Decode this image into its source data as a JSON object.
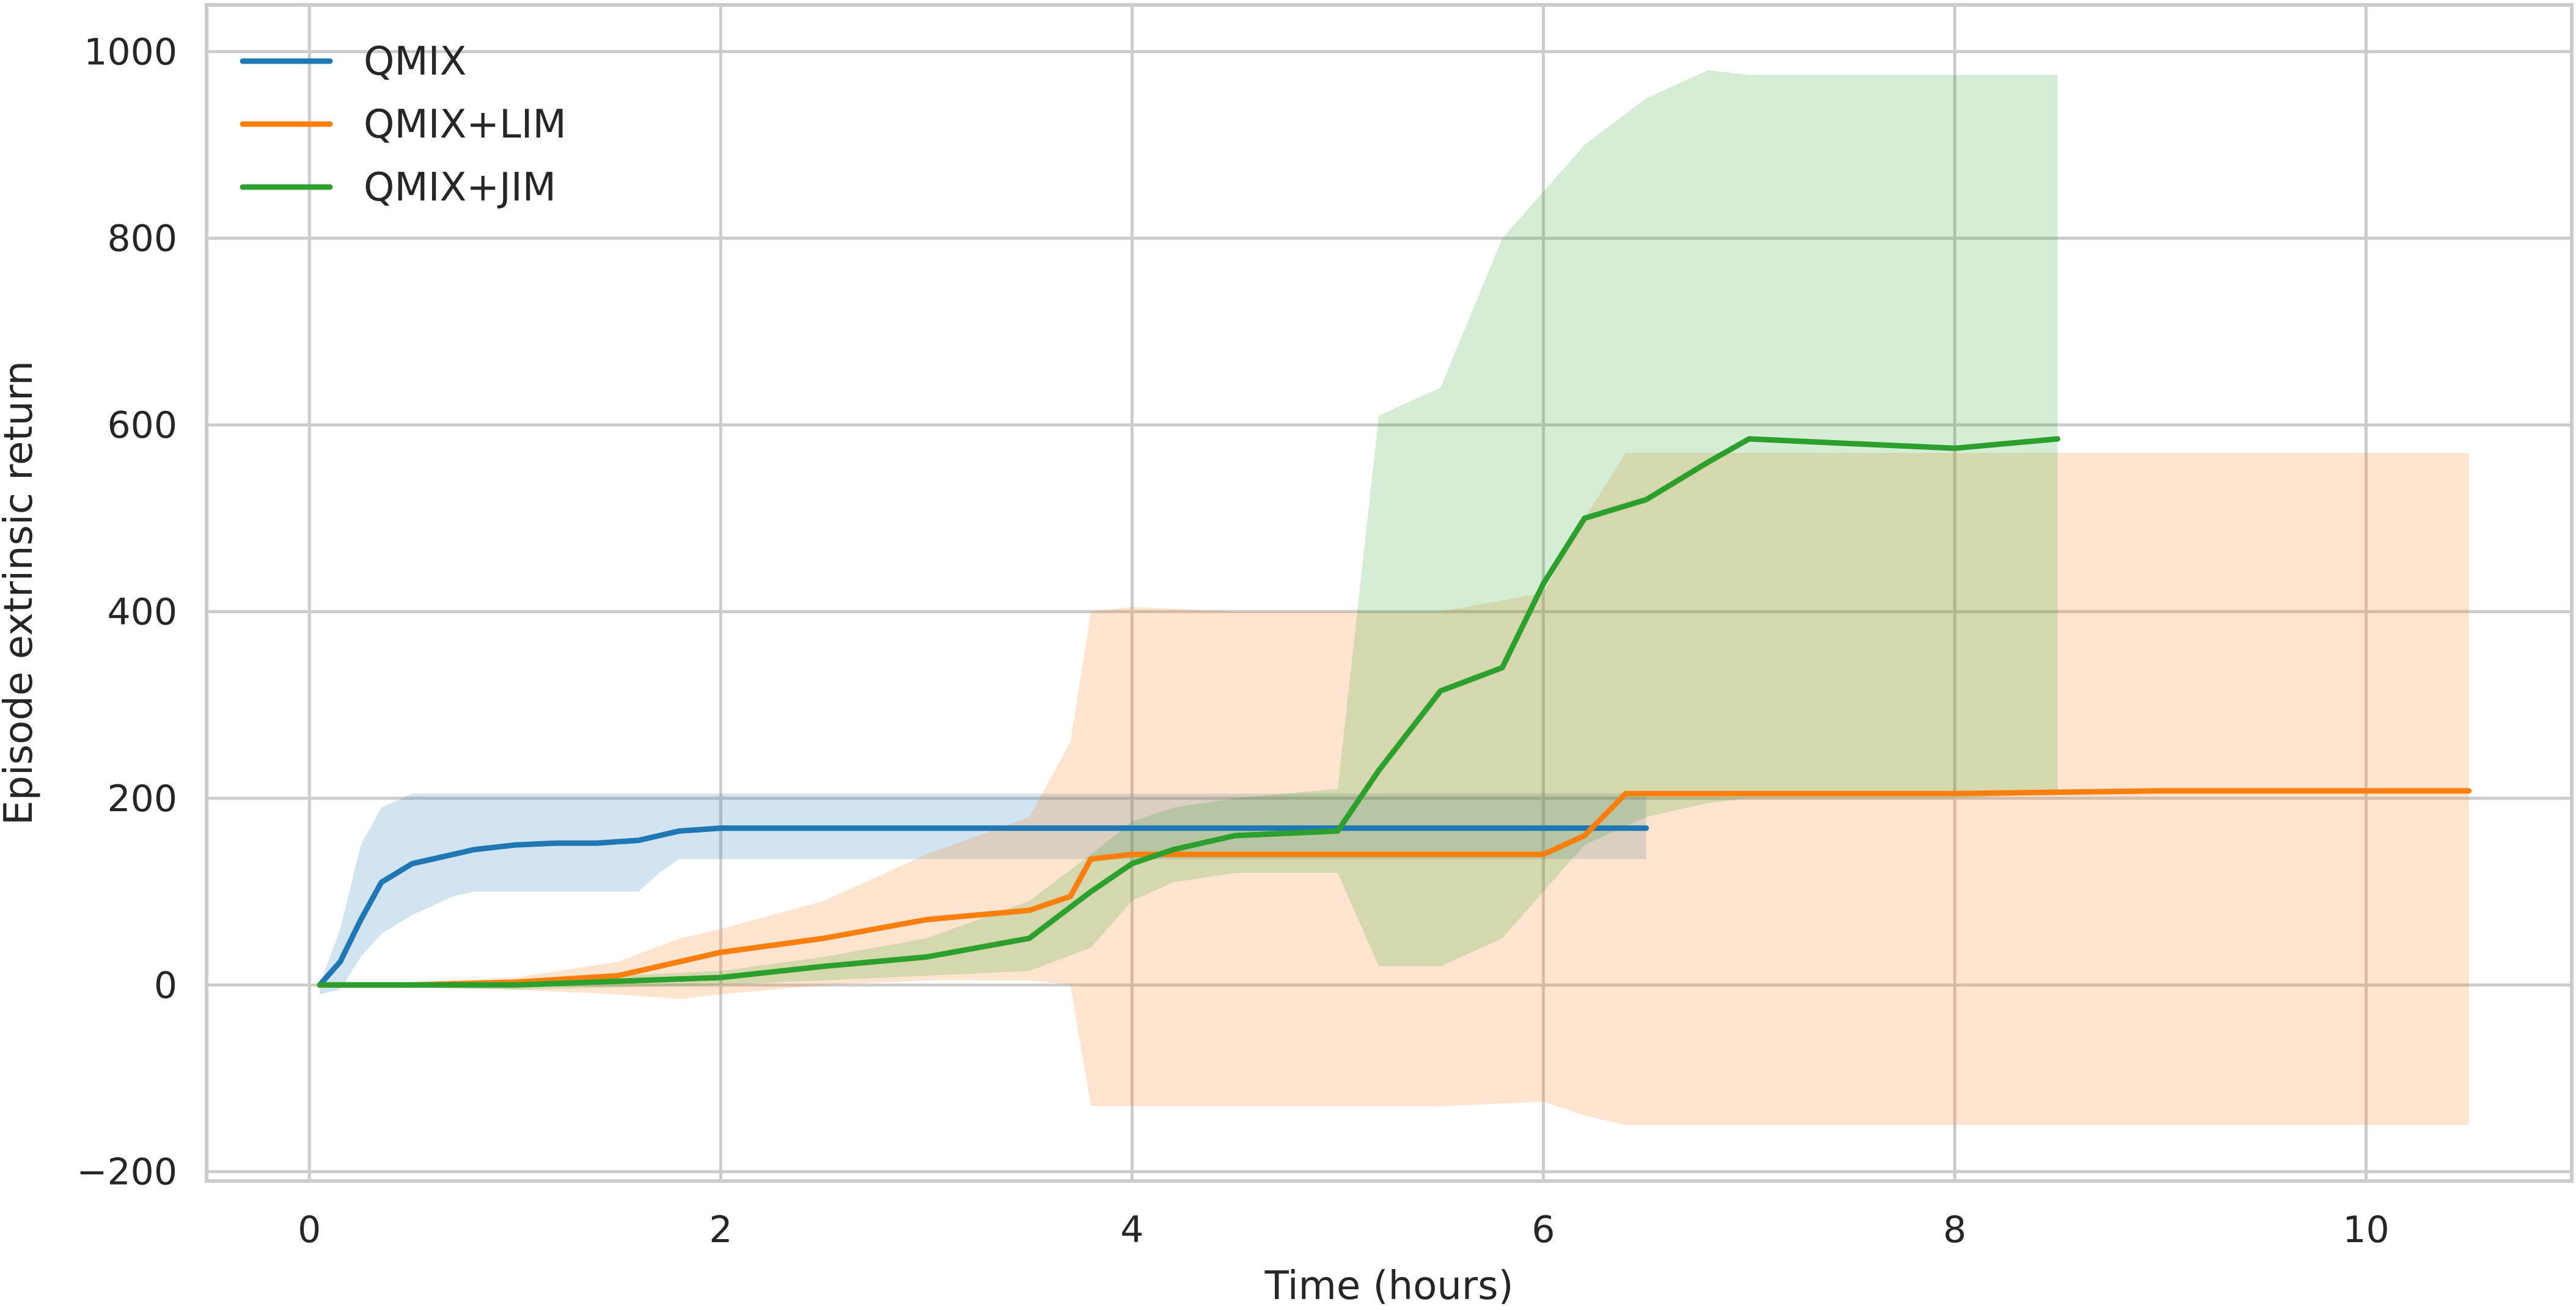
{
  "chart_data": {
    "type": "line",
    "xlabel": "Time (hours)",
    "ylabel": "Episode extrinsic return",
    "xlim": [
      -0.5,
      11.0
    ],
    "ylim": [
      -210,
      1050
    ],
    "xticks": [
      0,
      2,
      4,
      6,
      8,
      10
    ],
    "xtick_labels": [
      "0",
      "2",
      "4",
      "6",
      "8",
      "10"
    ],
    "yticks": [
      -200,
      0,
      200,
      400,
      600,
      800,
      1000
    ],
    "ytick_labels": [
      "−200",
      "0",
      "200",
      "400",
      "600",
      "800",
      "1000"
    ],
    "grid": true,
    "legend_position": "top-left",
    "series": [
      {
        "name": "QMIX",
        "color": "#1f77b4",
        "x": [
          0.05,
          0.15,
          0.25,
          0.35,
          0.5,
          0.6,
          0.7,
          0.8,
          1.0,
          1.2,
          1.4,
          1.6,
          1.7,
          1.8,
          2.0,
          2.5,
          3.0,
          3.5,
          4.0,
          4.5,
          5.0,
          5.5,
          6.0,
          6.5
        ],
        "y": [
          0,
          25,
          70,
          110,
          130,
          135,
          140,
          145,
          150,
          152,
          152,
          155,
          160,
          165,
          168,
          168,
          168,
          168,
          168,
          168,
          168,
          168,
          168,
          168
        ],
        "upper": [
          0,
          60,
          150,
          190,
          205,
          205,
          205,
          205,
          205,
          205,
          205,
          205,
          205,
          205,
          205,
          205,
          205,
          205,
          205,
          205,
          205,
          205,
          205,
          205
        ],
        "lower": [
          -10,
          -5,
          30,
          55,
          75,
          85,
          95,
          100,
          100,
          100,
          100,
          100,
          120,
          135,
          135,
          135,
          135,
          135,
          135,
          135,
          135,
          135,
          135,
          135
        ]
      },
      {
        "name": "QMIX+LIM",
        "color": "#ff7f0e",
        "x": [
          0.05,
          0.5,
          1.0,
          1.5,
          1.8,
          2.0,
          2.5,
          3.0,
          3.5,
          3.7,
          3.8,
          4.0,
          4.5,
          5.0,
          5.5,
          6.0,
          6.2,
          6.4,
          7.0,
          8.0,
          9.0,
          10.0,
          10.5
        ],
        "y": [
          0,
          0,
          3,
          10,
          25,
          35,
          50,
          70,
          80,
          95,
          135,
          140,
          140,
          140,
          140,
          140,
          160,
          205,
          205,
          205,
          208,
          208,
          208
        ],
        "upper": [
          0,
          3,
          8,
          25,
          50,
          60,
          90,
          140,
          180,
          260,
          400,
          405,
          400,
          400,
          400,
          420,
          500,
          570,
          570,
          570,
          570,
          570,
          570
        ],
        "lower": [
          0,
          -3,
          -5,
          -10,
          -15,
          -10,
          0,
          5,
          5,
          0,
          -130,
          -130,
          -130,
          -130,
          -130,
          -125,
          -140,
          -150,
          -150,
          -150,
          -150,
          -150,
          -150
        ]
      },
      {
        "name": "QMIX+JIM",
        "color": "#2ca02c",
        "x": [
          0.05,
          1.0,
          2.0,
          2.5,
          3.0,
          3.5,
          3.8,
          4.0,
          4.2,
          4.5,
          5.0,
          5.2,
          5.5,
          5.8,
          6.0,
          6.2,
          6.5,
          6.8,
          7.0,
          7.5,
          8.0,
          8.5
        ],
        "y": [
          0,
          0,
          8,
          20,
          30,
          50,
          100,
          130,
          145,
          160,
          165,
          230,
          315,
          340,
          430,
          500,
          520,
          560,
          585,
          580,
          575,
          585
        ],
        "upper": [
          0,
          5,
          15,
          30,
          50,
          90,
          140,
          175,
          190,
          200,
          210,
          610,
          640,
          800,
          850,
          900,
          950,
          980,
          975,
          975,
          975,
          975
        ],
        "lower": [
          0,
          -5,
          0,
          5,
          10,
          15,
          40,
          90,
          110,
          120,
          120,
          20,
          20,
          50,
          100,
          150,
          180,
          195,
          200,
          200,
          200,
          205
        ]
      }
    ]
  }
}
